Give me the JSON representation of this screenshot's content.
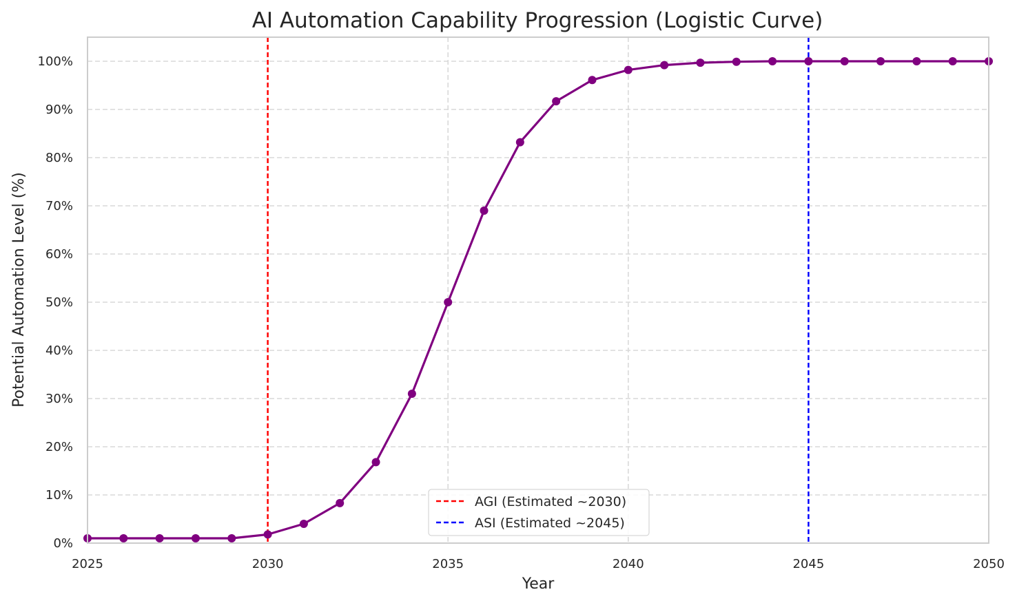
{
  "chart_data": {
    "type": "line",
    "title": "AI Automation Capability Progression (Logistic Curve)",
    "xlabel": "Year",
    "ylabel": "Potential Automation Level (%)",
    "xlim": [
      2025,
      2050
    ],
    "ylim": [
      0,
      105
    ],
    "x_ticks": [
      2025,
      2030,
      2035,
      2040,
      2045,
      2050
    ],
    "y_ticks": [
      0,
      10,
      20,
      30,
      40,
      50,
      60,
      70,
      80,
      90,
      100
    ],
    "y_tick_labels": [
      "0%",
      "10%",
      "20%",
      "30%",
      "40%",
      "50%",
      "60%",
      "70%",
      "80%",
      "90%",
      "100%"
    ],
    "grid": true,
    "series": [
      {
        "color": "#800080",
        "x": [
          2025,
          2026,
          2027,
          2028,
          2029,
          2030,
          2031,
          2032,
          2033,
          2034,
          2035,
          2036,
          2037,
          2038,
          2039,
          2040,
          2041,
          2042,
          2043,
          2044,
          2045,
          2046,
          2047,
          2048,
          2049,
          2050
        ],
        "y": [
          1.0,
          1.0,
          1.0,
          1.0,
          1.0,
          1.8,
          4.0,
          8.3,
          16.8,
          31.0,
          50.0,
          69.0,
          83.2,
          91.7,
          96.1,
          98.2,
          99.2,
          99.7,
          99.9,
          100.0,
          100.0,
          100.0,
          100.0,
          100.0,
          100.0,
          100.0
        ]
      }
    ],
    "vlines": [
      {
        "x": 2030,
        "label": "AGI (Estimated ~2030)",
        "color": "#ff0000",
        "style": "dashed"
      },
      {
        "x": 2045,
        "label": "ASI (Estimated ~2045)",
        "color": "#0000ff",
        "style": "dashed"
      }
    ],
    "legend_location": "bottom-center"
  }
}
